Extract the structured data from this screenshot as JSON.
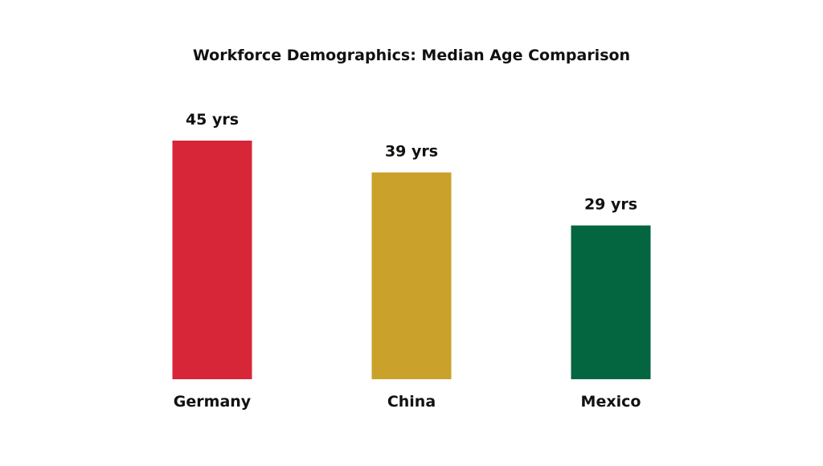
{
  "chart_data": {
    "type": "bar",
    "title": "Workforce Demographics: Median Age Comparison",
    "categories": [
      "Germany",
      "China",
      "Mexico"
    ],
    "values": [
      45,
      39,
      29
    ],
    "value_labels": [
      "45 yrs",
      "39 yrs",
      "29 yrs"
    ],
    "colors": [
      "#d72638",
      "#c9a12b",
      "#036641"
    ],
    "xlabel": "",
    "ylabel": "",
    "ylim": [
      0,
      45
    ],
    "grid": false,
    "legend": "none"
  }
}
